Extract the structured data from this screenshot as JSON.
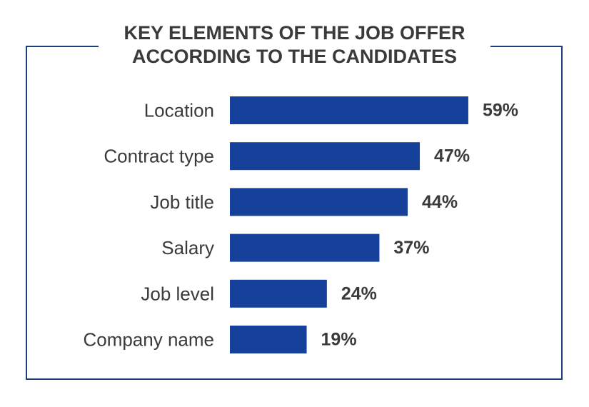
{
  "chart_data": {
    "type": "bar",
    "orientation": "horizontal",
    "title": [
      "KEY ELEMENTS OF THE JOB OFFER",
      "ACCORDING TO THE CANDIDATES"
    ],
    "categories": [
      "Location",
      "Contract type",
      "Job title",
      "Salary",
      "Job level",
      "Company name"
    ],
    "values": [
      59,
      47,
      44,
      37,
      24,
      19
    ],
    "value_labels": [
      "59%",
      "47%",
      "44%",
      "37%",
      "24%",
      "19%"
    ],
    "unit": "%",
    "bar_color": "#15419a",
    "frame_color": "#1b3f7a",
    "grid": false,
    "legend": "none"
  }
}
